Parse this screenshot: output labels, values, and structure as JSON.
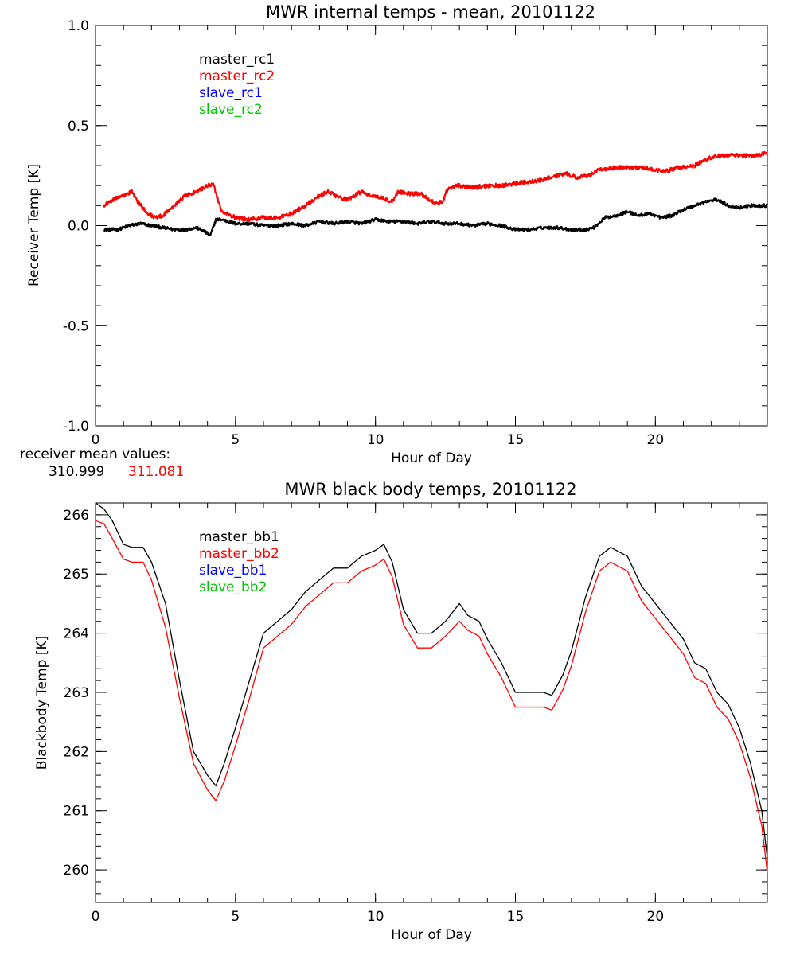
{
  "chart_data": [
    {
      "type": "line",
      "title": "MWR internal temps - mean, 20101122",
      "xlabel": "Hour of Day",
      "ylabel": "Receiver Temp [K]",
      "xlim": [
        0,
        24
      ],
      "ylim": [
        -1.0,
        1.0
      ],
      "xticks": [
        0,
        5,
        10,
        15,
        20
      ],
      "xtick_labels": [
        "0",
        "5",
        "10",
        "15",
        "20"
      ],
      "yticks": [
        -1.0,
        -0.5,
        0.0,
        0.5,
        1.0
      ],
      "ytick_labels": [
        "-1.0",
        "-0.5",
        "0.0",
        "0.5",
        "1.0"
      ],
      "legend": [
        {
          "name": "master_rc1",
          "color": "#000000"
        },
        {
          "name": "master_rc2",
          "color": "#ff0000"
        },
        {
          "name": "slave_rc1",
          "color": "#0000ff"
        },
        {
          "name": "slave_rc2",
          "color": "#00c800"
        }
      ],
      "annotation": {
        "label": "receiver mean values:",
        "values": [
          {
            "text": "310.999",
            "color": "#000000"
          },
          {
            "text": "311.081",
            "color": "#ff0000"
          }
        ]
      },
      "series": [
        {
          "name": "master_rc1",
          "color": "#000000",
          "noise": 0.008,
          "x": [
            0.3,
            0.8,
            1.2,
            1.6,
            2.0,
            2.4,
            2.8,
            3.2,
            3.6,
            3.9,
            4.1,
            4.3,
            4.5,
            5.0,
            5.5,
            6.0,
            6.5,
            7.0,
            7.5,
            8.0,
            8.5,
            9.0,
            9.5,
            10.0,
            10.5,
            11.0,
            11.5,
            12.0,
            12.5,
            13.0,
            13.5,
            14.0,
            14.5,
            15.0,
            15.5,
            16.0,
            16.5,
            17.0,
            17.5,
            17.8,
            18.2,
            18.6,
            19.0,
            19.4,
            19.8,
            20.2,
            20.6,
            21.0,
            21.4,
            21.8,
            22.2,
            22.6,
            23.0,
            23.4,
            24.0
          ],
          "y": [
            -0.02,
            -0.02,
            0.0,
            0.01,
            0.0,
            -0.01,
            -0.02,
            -0.02,
            -0.01,
            -0.03,
            -0.05,
            0.03,
            0.03,
            0.01,
            0.01,
            0.0,
            0.0,
            0.01,
            0.0,
            0.02,
            0.01,
            0.02,
            0.01,
            0.03,
            0.02,
            0.02,
            0.01,
            0.02,
            0.01,
            0.01,
            0.0,
            0.01,
            0.0,
            -0.02,
            -0.02,
            -0.01,
            -0.01,
            -0.02,
            -0.02,
            -0.01,
            0.04,
            0.05,
            0.07,
            0.05,
            0.06,
            0.04,
            0.05,
            0.08,
            0.1,
            0.12,
            0.13,
            0.1,
            0.09,
            0.1,
            0.1
          ]
        },
        {
          "name": "master_rc2",
          "color": "#ff0000",
          "noise": 0.01,
          "x": [
            0.3,
            0.6,
            1.0,
            1.3,
            1.5,
            1.8,
            2.1,
            2.4,
            2.8,
            3.2,
            3.6,
            4.0,
            4.2,
            4.5,
            5.0,
            5.5,
            6.0,
            6.5,
            7.0,
            7.5,
            8.0,
            8.3,
            8.7,
            9.0,
            9.5,
            9.8,
            10.2,
            10.6,
            10.8,
            11.2,
            11.6,
            11.8,
            12.2,
            12.4,
            12.6,
            13.0,
            13.5,
            14.0,
            14.5,
            15.0,
            15.5,
            16.0,
            16.5,
            16.8,
            17.2,
            17.6,
            18.0,
            18.5,
            19.0,
            19.5,
            20.0,
            20.3,
            20.8,
            21.4,
            21.8,
            22.2,
            22.8,
            23.4,
            24.0
          ],
          "y": [
            0.1,
            0.13,
            0.15,
            0.17,
            0.12,
            0.07,
            0.04,
            0.05,
            0.1,
            0.15,
            0.17,
            0.2,
            0.21,
            0.07,
            0.04,
            0.03,
            0.04,
            0.04,
            0.06,
            0.1,
            0.15,
            0.17,
            0.14,
            0.13,
            0.17,
            0.15,
            0.14,
            0.12,
            0.17,
            0.16,
            0.16,
            0.14,
            0.11,
            0.12,
            0.19,
            0.2,
            0.19,
            0.2,
            0.2,
            0.21,
            0.22,
            0.23,
            0.25,
            0.26,
            0.24,
            0.25,
            0.28,
            0.29,
            0.29,
            0.29,
            0.28,
            0.27,
            0.29,
            0.3,
            0.33,
            0.35,
            0.35,
            0.35,
            0.36
          ]
        }
      ]
    },
    {
      "type": "line",
      "title": "MWR black body temps, 20101122",
      "xlabel": "Hour of Day",
      "ylabel": "Blackbody Temp [K]",
      "xlim": [
        0,
        24
      ],
      "ylim": [
        259.45,
        266.2
      ],
      "xticks": [
        0,
        5,
        10,
        15,
        20
      ],
      "xtick_labels": [
        "0",
        "5",
        "10",
        "15",
        "20"
      ],
      "yticks": [
        260,
        261,
        262,
        263,
        264,
        265,
        266
      ],
      "ytick_labels": [
        "260",
        "261",
        "262",
        "263",
        "264",
        "265",
        "266"
      ],
      "legend": [
        {
          "name": "master_bb1",
          "color": "#000000"
        },
        {
          "name": "master_bb2",
          "color": "#ff0000"
        },
        {
          "name": "slave_bb1",
          "color": "#0000ff"
        },
        {
          "name": "slave_bb2",
          "color": "#00c800"
        }
      ],
      "series": [
        {
          "name": "master_bb1",
          "color": "#000000",
          "noise": 0,
          "x": [
            0.0,
            0.3,
            0.6,
            1.0,
            1.3,
            1.7,
            2.0,
            2.5,
            3.0,
            3.5,
            4.0,
            4.3,
            4.6,
            5.0,
            5.5,
            6.0,
            6.5,
            7.0,
            7.5,
            8.0,
            8.5,
            9.0,
            9.5,
            10.0,
            10.3,
            10.6,
            11.0,
            11.5,
            12.0,
            12.5,
            13.0,
            13.3,
            13.7,
            14.0,
            14.5,
            15.0,
            15.5,
            16.0,
            16.3,
            16.7,
            17.0,
            17.5,
            18.0,
            18.4,
            18.8,
            19.0,
            19.5,
            20.0,
            20.5,
            21.0,
            21.4,
            21.8,
            22.2,
            22.6,
            23.0,
            23.4,
            23.8,
            24.0
          ],
          "y": [
            266.2,
            266.1,
            265.9,
            265.5,
            265.45,
            265.45,
            265.2,
            264.5,
            263.2,
            262.0,
            261.6,
            261.42,
            261.8,
            262.4,
            263.2,
            264.0,
            264.2,
            264.4,
            264.7,
            264.9,
            265.1,
            265.1,
            265.3,
            265.4,
            265.5,
            265.2,
            264.4,
            264.0,
            264.0,
            264.2,
            264.5,
            264.3,
            264.2,
            263.9,
            263.5,
            263.0,
            263.0,
            263.0,
            262.95,
            263.3,
            263.7,
            264.6,
            265.3,
            265.45,
            265.35,
            265.3,
            264.8,
            264.5,
            264.2,
            263.9,
            263.5,
            263.4,
            263.0,
            262.8,
            262.4,
            261.8,
            261.0,
            260.2
          ]
        },
        {
          "name": "master_bb2",
          "color": "#ff0000",
          "noise": 0,
          "x": [
            0.0,
            0.3,
            0.6,
            1.0,
            1.3,
            1.7,
            2.0,
            2.5,
            3.0,
            3.5,
            4.0,
            4.3,
            4.6,
            5.0,
            5.5,
            6.0,
            6.5,
            7.0,
            7.5,
            8.0,
            8.5,
            9.0,
            9.5,
            10.0,
            10.3,
            10.6,
            11.0,
            11.5,
            12.0,
            12.5,
            13.0,
            13.3,
            13.7,
            14.0,
            14.5,
            15.0,
            15.5,
            16.0,
            16.3,
            16.7,
            17.0,
            17.5,
            18.0,
            18.4,
            18.8,
            19.0,
            19.5,
            20.0,
            20.5,
            21.0,
            21.4,
            21.8,
            22.2,
            22.6,
            23.0,
            23.4,
            23.8,
            24.0
          ],
          "y": [
            265.9,
            265.85,
            265.6,
            265.25,
            265.2,
            265.2,
            264.9,
            264.1,
            262.9,
            261.8,
            261.35,
            261.17,
            261.5,
            262.1,
            262.9,
            263.75,
            263.95,
            264.15,
            264.45,
            264.65,
            264.85,
            264.85,
            265.05,
            265.15,
            265.25,
            264.95,
            264.15,
            263.75,
            263.75,
            263.95,
            264.2,
            264.05,
            263.95,
            263.65,
            263.25,
            262.75,
            262.75,
            262.75,
            262.7,
            263.05,
            263.45,
            264.35,
            265.05,
            265.2,
            265.1,
            265.05,
            264.55,
            264.25,
            263.95,
            263.65,
            263.25,
            263.15,
            262.75,
            262.55,
            262.15,
            261.55,
            260.75,
            259.95
          ]
        }
      ]
    }
  ]
}
